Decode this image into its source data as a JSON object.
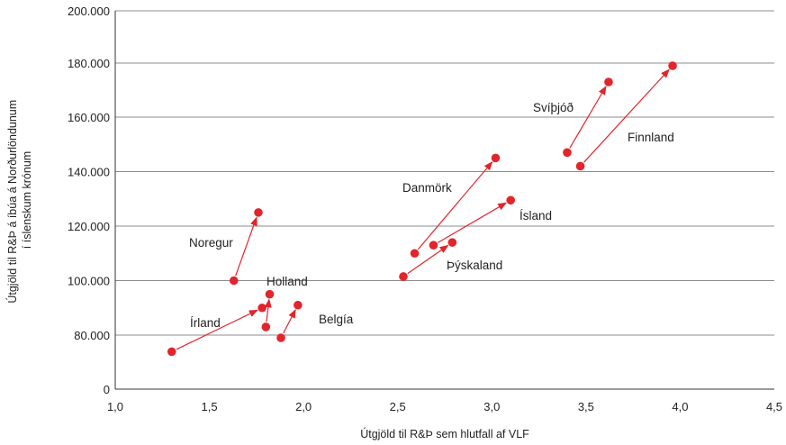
{
  "chart_data": {
    "type": "scatter",
    "xlabel": "Útgjöld til R&Þ sem hlutfall af VLF",
    "ylabel_lines": [
      "Útgjöld til R&Þ á íbúa á Norðurlöndunum",
      "í íslenskum krónum"
    ],
    "xlim": [
      1.0,
      4.5
    ],
    "ylim": [
      0,
      200000
    ],
    "x_ticks": [
      "1,0",
      "1,5",
      "2,0",
      "2,5",
      "3,0",
      "3,5",
      "4,0",
      "4,5"
    ],
    "y_ticks": [
      "0",
      "80.000",
      "100.000",
      "120.000",
      "140.000",
      "160.000",
      "180.000",
      "200.000"
    ],
    "grid": "horizontal",
    "colors": {
      "marker": "#e3242b",
      "arrow": "#e3242b",
      "grid": "#555555"
    },
    "series": [
      {
        "name": "Noregur",
        "from": {
          "x": 1.63,
          "y": 100000
        },
        "to": {
          "x": 1.76,
          "y": 125000
        }
      },
      {
        "name": "Holland",
        "from": {
          "x": 1.8,
          "y": 83000
        },
        "to": {
          "x": 1.82,
          "y": 95000
        }
      },
      {
        "name": "Írland",
        "from": {
          "x": 1.3,
          "y": 55500
        },
        "to": {
          "x": 1.78,
          "y": 90000
        }
      },
      {
        "name": "Belgía",
        "from": {
          "x": 1.88,
          "y": 76000
        },
        "to": {
          "x": 1.97,
          "y": 91000
        }
      },
      {
        "name": "Danmörk",
        "from": {
          "x": 2.59,
          "y": 110000
        },
        "to": {
          "x": 3.02,
          "y": 145000
        }
      },
      {
        "name": "Ísland",
        "from": {
          "x": 2.69,
          "y": 113000
        },
        "to": {
          "x": 3.1,
          "y": 129500
        }
      },
      {
        "name": "Þýskaland",
        "from": {
          "x": 2.53,
          "y": 101500
        },
        "to": {
          "x": 2.79,
          "y": 114000
        }
      },
      {
        "name": "Svíþjóð",
        "from": {
          "x": 3.4,
          "y": 147000
        },
        "to": {
          "x": 3.62,
          "y": 173000
        }
      },
      {
        "name": "Finnland",
        "from": {
          "x": 3.47,
          "y": 142000
        },
        "to": {
          "x": 3.96,
          "y": 179000
        }
      }
    ]
  }
}
